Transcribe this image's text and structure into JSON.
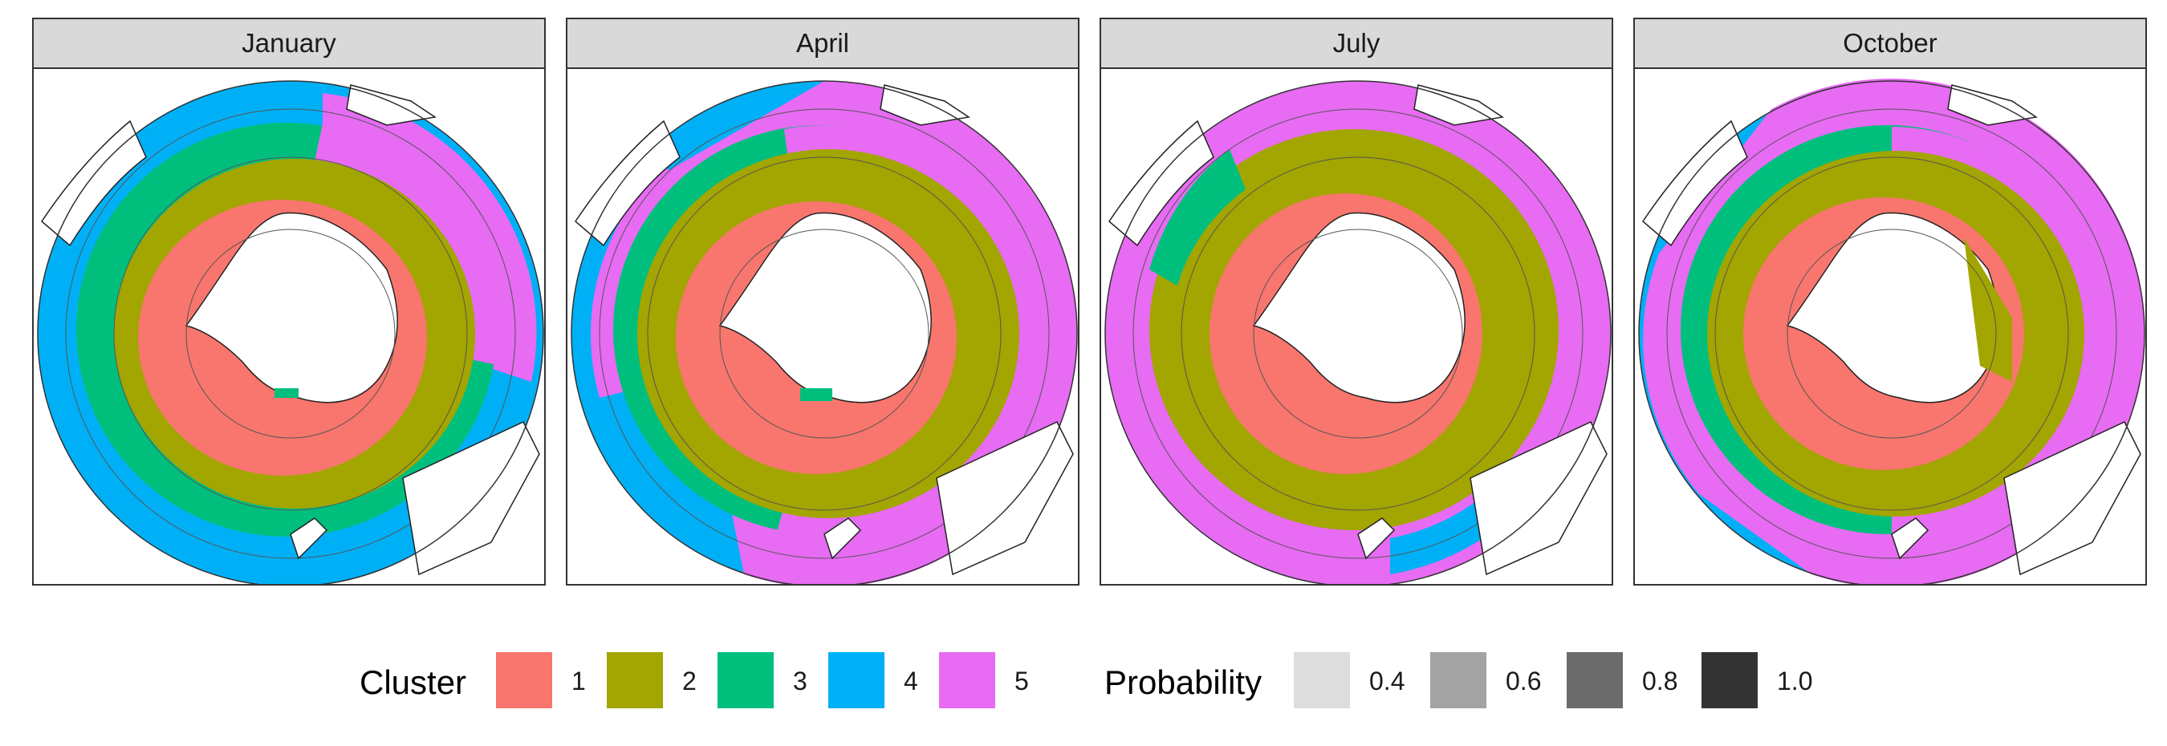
{
  "panels": [
    {
      "title": "January"
    },
    {
      "title": "April"
    },
    {
      "title": "July"
    },
    {
      "title": "October"
    }
  ],
  "legend": {
    "cluster_title": "Cluster",
    "clusters": [
      {
        "label": "1",
        "color": "#F8766D"
      },
      {
        "label": "2",
        "color": "#A3A500"
      },
      {
        "label": "3",
        "color": "#00BF7D"
      },
      {
        "label": "4",
        "color": "#00B0F6"
      },
      {
        "label": "5",
        "color": "#E76BF3"
      }
    ],
    "probability_title": "Probability",
    "probabilities": [
      {
        "label": "0.4",
        "color": "#dddddd"
      },
      {
        "label": "0.6",
        "color": "#a3a3a3"
      },
      {
        "label": "0.8",
        "color": "#6b6b6b"
      },
      {
        "label": "1.0",
        "color": "#333333"
      }
    ]
  }
}
